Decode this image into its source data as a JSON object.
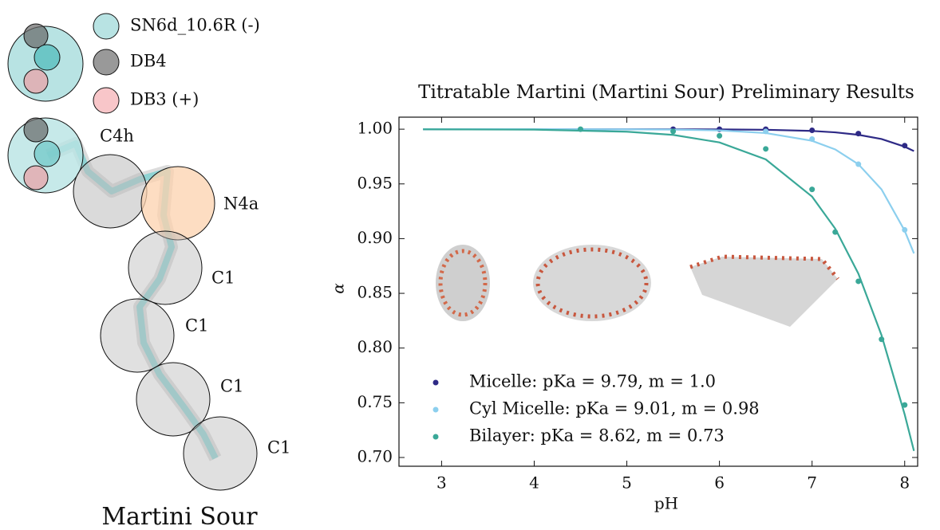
{
  "diagram": {
    "legend": [
      "SN6d_10.6R (-)",
      "DB4",
      "DB3 (+)"
    ],
    "beads": [
      "C4h",
      "N4a",
      "C1",
      "C1",
      "C1",
      "C1"
    ],
    "title": "Martini Sour"
  },
  "chart_data": {
    "type": "scatter",
    "title": "Titratable Martini (Martini Sour) Preliminary Results",
    "x_label": "pH",
    "y_label": "α",
    "xlim": [
      2.54,
      8.14
    ],
    "ylim": [
      0.692,
      1.011
    ],
    "xticks": [
      3,
      4,
      5,
      6,
      7,
      8
    ],
    "yticks": [
      {
        "value": 0.7,
        "label": "0.70"
      },
      {
        "value": 0.75,
        "label": "0.75"
      },
      {
        "value": 0.8,
        "label": "0.80"
      },
      {
        "value": 0.85,
        "label": "0.85"
      },
      {
        "value": 0.9,
        "label": "0.90"
      },
      {
        "value": 0.95,
        "label": "0.95"
      },
      {
        "value": 1.0,
        "label": "1.00"
      }
    ],
    "grid": false,
    "legend": "lower-left",
    "series": [
      {
        "name": "Micelle: pKa = 9.79, m = 1.0",
        "color": "#2e2a86",
        "x": [
          5.5,
          6,
          6.5,
          7,
          7.5,
          8
        ],
        "values": [
          1.0,
          1.0,
          1.0,
          0.999,
          0.996,
          0.985
        ],
        "fit": {
          "x": [
            2.8,
            4,
            5,
            5.5,
            6,
            6.5,
            7,
            7.25,
            7.5,
            7.75,
            8,
            8.1
          ],
          "values": [
            1.0,
            1.0,
            1.0,
            0.9999,
            0.9998,
            0.9995,
            0.9984,
            0.9971,
            0.9949,
            0.991,
            0.984,
            0.98
          ]
        }
      },
      {
        "name": "Cyl Micelle: pKa = 9.01, m = 0.98",
        "color": "#8ccfee",
        "x": [
          6.5,
          7,
          7.5,
          8
        ],
        "values": [
          0.998,
          0.991,
          0.968,
          0.908
        ],
        "fit": {
          "x": [
            2.8,
            4,
            5,
            5.5,
            6,
            6.5,
            7,
            7.25,
            7.5,
            7.75,
            8,
            8.1
          ],
          "values": [
            1.0,
            1.0,
            0.9999,
            0.9996,
            0.9989,
            0.9965,
            0.9894,
            0.9815,
            0.968,
            0.945,
            0.9072,
            0.8865
          ]
        }
      },
      {
        "name": "Bilayer: pKa = 8.62, m = 0.73",
        "color": "#3aa898",
        "x": [
          4.5,
          5.5,
          6,
          6.5,
          7,
          7.25,
          7.5,
          7.75,
          8
        ],
        "values": [
          1.0,
          0.998,
          0.994,
          0.982,
          0.945,
          0.906,
          0.861,
          0.808,
          0.748
        ],
        "fit": {
          "x": [
            2.8,
            4,
            5,
            5.5,
            6,
            6.5,
            7,
            7.25,
            7.5,
            7.75,
            8,
            8.1
          ],
          "values": [
            0.9999,
            0.9996,
            0.9977,
            0.9948,
            0.9879,
            0.9724,
            0.9384,
            0.9091,
            0.868,
            0.8117,
            0.7393,
            0.706
          ]
        }
      }
    ]
  }
}
